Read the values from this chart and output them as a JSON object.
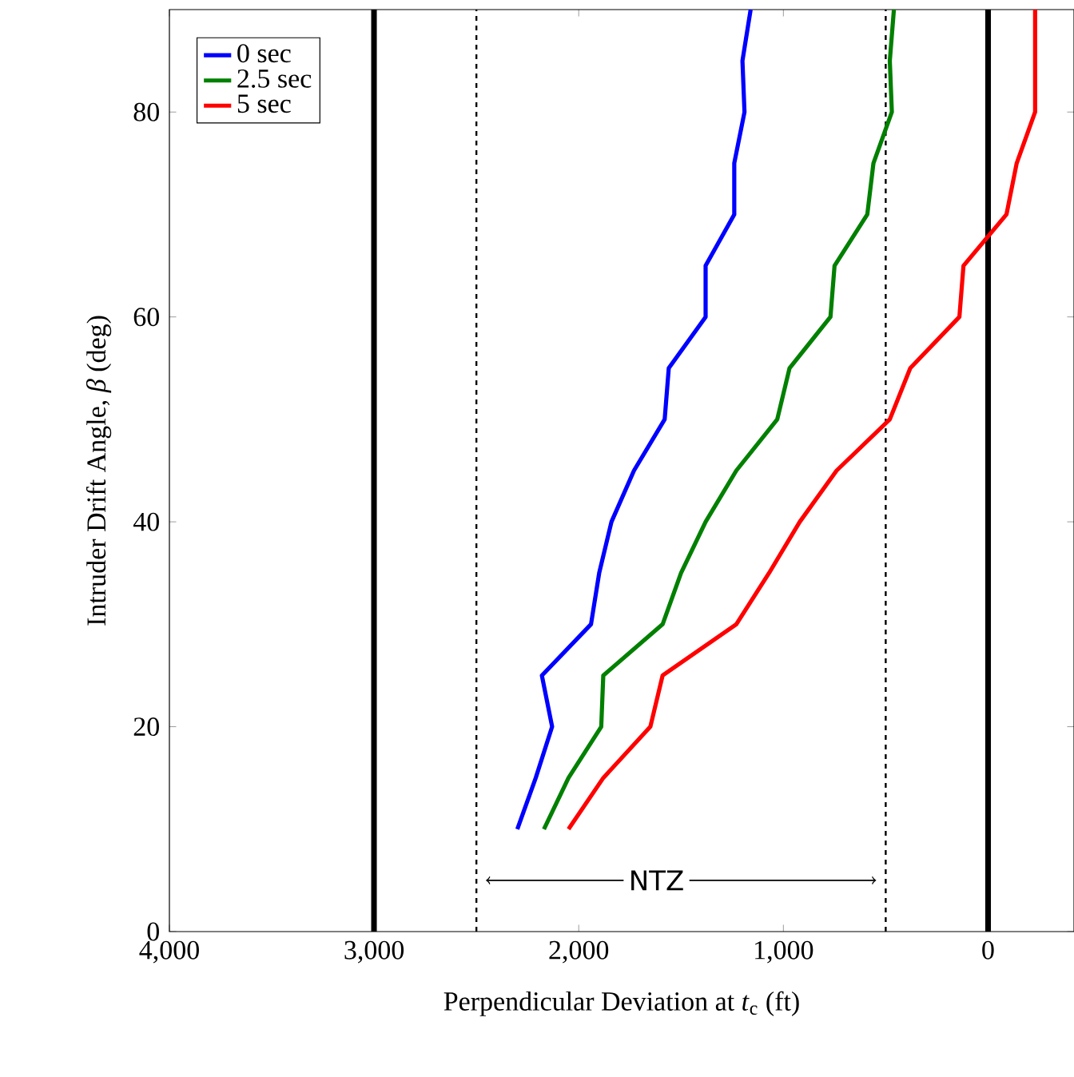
{
  "chart_data": {
    "type": "line",
    "xlabel": "Perpendicular Deviation at *t*$_{c}$ (ft)",
    "ylabel": "Intruder Drift Angle, *β* (deg)",
    "xlim": [
      4000,
      -420
    ],
    "ylim": [
      0,
      90
    ],
    "xticks": [
      {
        "value": 4000,
        "label": "4,000"
      },
      {
        "value": 3000,
        "label": "3,000"
      },
      {
        "value": 2000,
        "label": "2,000"
      },
      {
        "value": 1000,
        "label": "1,000"
      },
      0
    ],
    "yticks": [
      0,
      20,
      40,
      60,
      80
    ],
    "legend": "top left",
    "marker": "none",
    "line_style": "solid",
    "grid": false,
    "series": [
      {
        "name": "0 sec",
        "color": "#0000ff",
        "x": [
          2300,
          2210,
          2130,
          2180,
          1940,
          1900,
          1840,
          1730,
          1580,
          1560,
          1380,
          1380,
          1240,
          1240,
          1190,
          1200,
          1160
        ],
        "values": [
          10,
          15,
          20,
          25,
          30,
          35,
          40,
          45,
          50,
          55,
          60,
          65,
          70,
          75,
          80,
          85,
          90
        ]
      },
      {
        "name": "2.5 sec",
        "color": "#008000",
        "x": [
          2170,
          2050,
          1890,
          1880,
          1590,
          1500,
          1380,
          1230,
          1030,
          970,
          770,
          750,
          590,
          560,
          470,
          480,
          460
        ],
        "values": [
          10,
          15,
          20,
          25,
          30,
          35,
          40,
          45,
          50,
          55,
          60,
          65,
          70,
          75,
          80,
          85,
          90
        ]
      },
      {
        "name": "5 sec",
        "color": "#ff0000",
        "x": [
          2050,
          1880,
          1650,
          1590,
          1230,
          1070,
          920,
          740,
          480,
          380,
          140,
          120,
          -90,
          -140,
          -230,
          -230
        ],
        "values": [
          10,
          15,
          20,
          25,
          30,
          35,
          40,
          45,
          50,
          55,
          60,
          65,
          70,
          75,
          80,
          90
        ]
      }
    ],
    "ref_lines": [
      {
        "axis": "x",
        "value": 3000,
        "color": "#000000",
        "line_style": "solid"
      },
      {
        "axis": "x",
        "value": 2500,
        "color": "#000000",
        "line_style": "dashed"
      },
      {
        "axis": "x",
        "value": 500,
        "color": "#000000",
        "line_style": "dashed"
      },
      {
        "axis": "x",
        "value": 0,
        "color": "#000000",
        "line_style": "solid"
      }
    ],
    "annotations": [
      {
        "text": "NTZ",
        "x": 1620,
        "y": 5
      }
    ]
  }
}
